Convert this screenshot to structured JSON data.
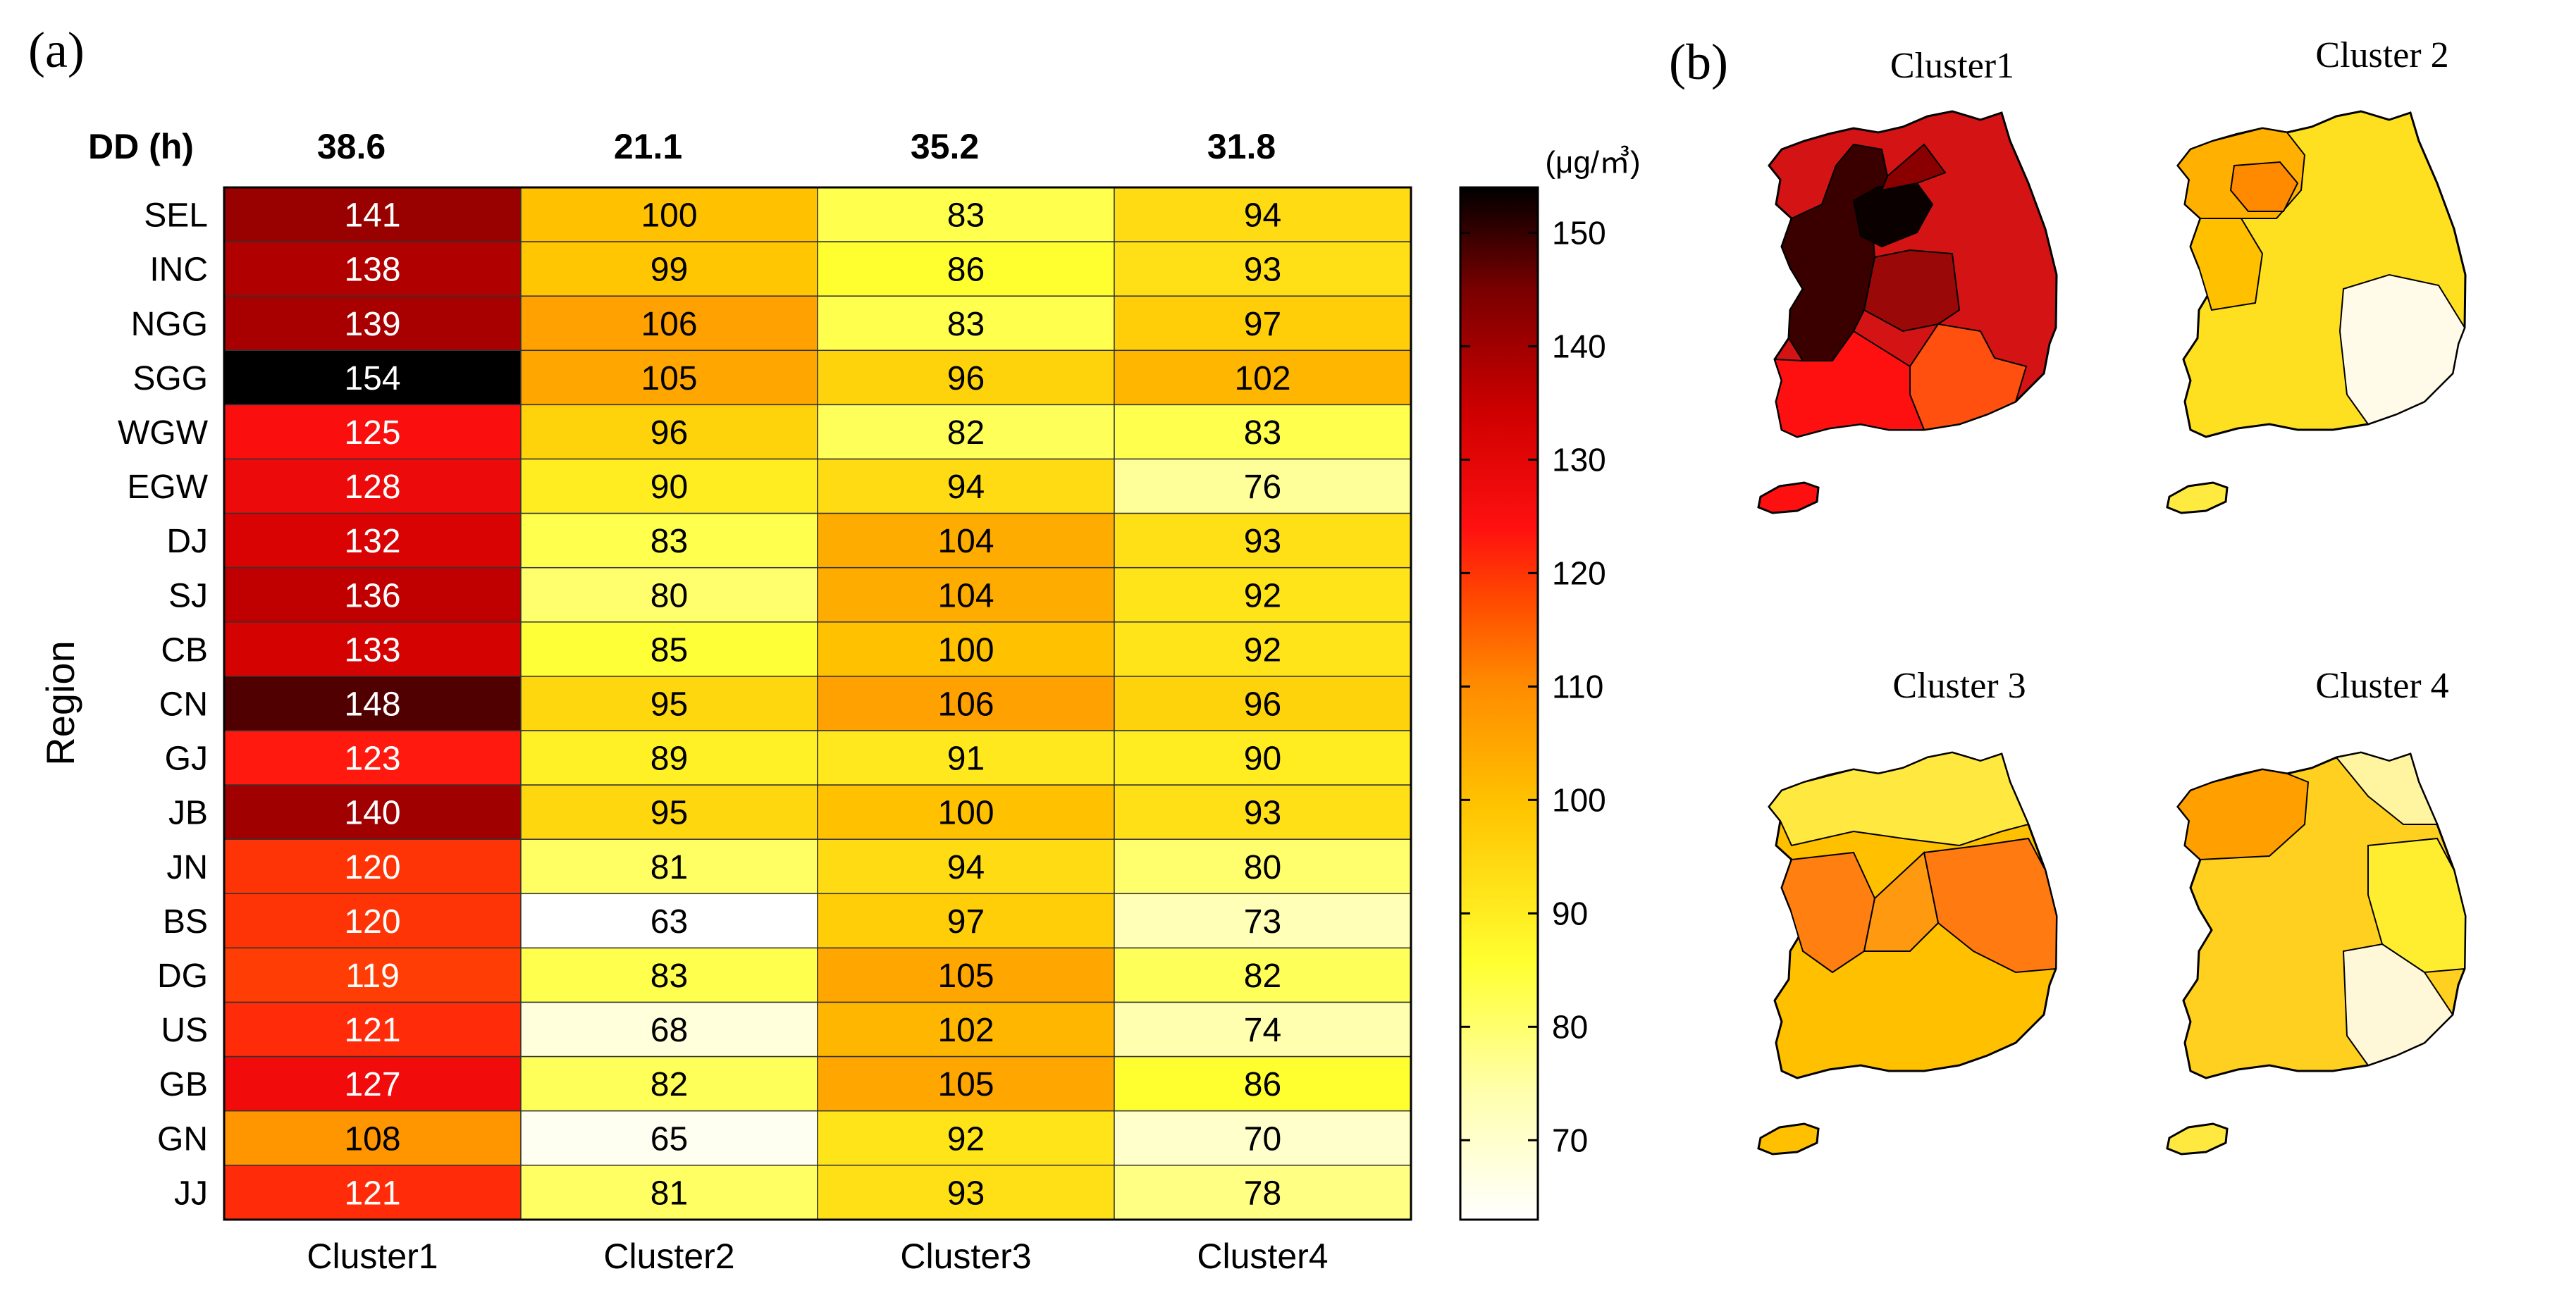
{
  "panels": {
    "a": {
      "label": "(a)"
    },
    "b": {
      "label": "(b)"
    }
  },
  "colorbar": {
    "unit": "(μg/㎥)",
    "ticks": [
      70,
      80,
      90,
      100,
      110,
      120,
      130,
      140,
      150
    ],
    "range": [
      63,
      154
    ]
  },
  "chart_data": {
    "type": "heatmap",
    "title": "",
    "xlabel": "",
    "ylabel": "Region",
    "dd_label": "DD (h)",
    "dd_values": [
      "38.6",
      "21.1",
      "35.2",
      "31.8"
    ],
    "columns": [
      "Cluster1",
      "Cluster2",
      "Cluster3",
      "Cluster4"
    ],
    "rows": [
      "SEL",
      "INC",
      "NGG",
      "SGG",
      "WGW",
      "EGW",
      "DJ",
      "SJ",
      "CB",
      "CN",
      "GJ",
      "JB",
      "JN",
      "BS",
      "DG",
      "US",
      "GB",
      "GN",
      "JJ"
    ],
    "values": [
      [
        141,
        100,
        83,
        94
      ],
      [
        138,
        99,
        86,
        93
      ],
      [
        139,
        106,
        83,
        97
      ],
      [
        154,
        105,
        96,
        102
      ],
      [
        125,
        96,
        82,
        83
      ],
      [
        128,
        90,
        94,
        76
      ],
      [
        132,
        83,
        104,
        93
      ],
      [
        136,
        80,
        104,
        92
      ],
      [
        133,
        85,
        100,
        92
      ],
      [
        148,
        95,
        106,
        96
      ],
      [
        123,
        89,
        91,
        90
      ],
      [
        140,
        95,
        100,
        93
      ],
      [
        120,
        81,
        94,
        80
      ],
      [
        120,
        63,
        97,
        73
      ],
      [
        119,
        83,
        105,
        82
      ],
      [
        121,
        68,
        102,
        74
      ],
      [
        127,
        82,
        105,
        86
      ],
      [
        108,
        65,
        92,
        70
      ],
      [
        121,
        81,
        93,
        78
      ]
    ],
    "colormap": "hot (reversed)"
  },
  "maps": [
    {
      "title": "Cluster1"
    },
    {
      "title": "Cluster 2"
    },
    {
      "title": "Cluster 3"
    },
    {
      "title": "Cluster 4"
    }
  ]
}
